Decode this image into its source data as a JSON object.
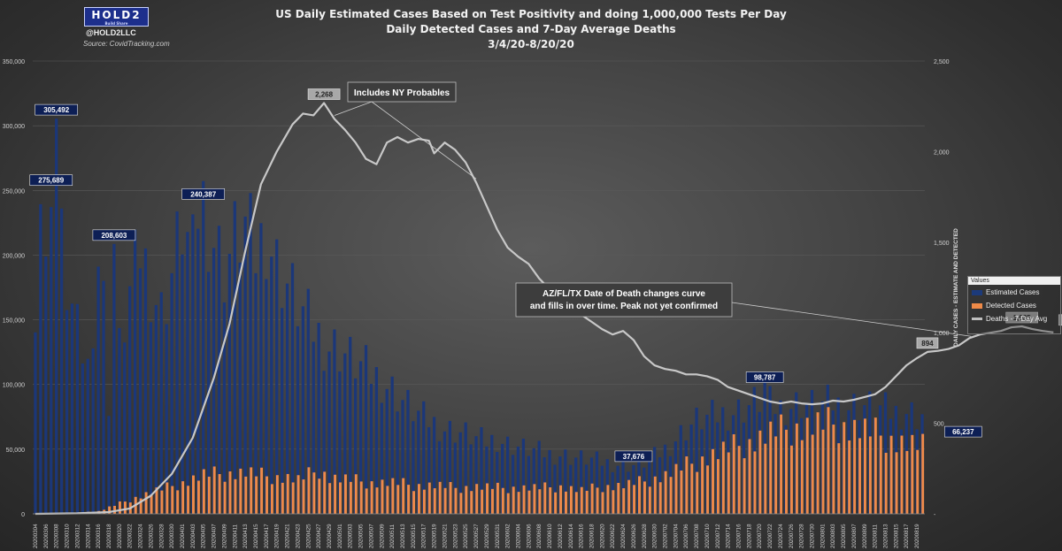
{
  "header": {
    "logo_text": "HOLD2",
    "logo_sub": "Build Share",
    "handle": "@HOLD2LLC",
    "source": "Source: CovidTracking.com"
  },
  "titles": [
    "US Daily Estimated Cases Based on Test Positivity and doing 1,000,000 Tests Per Day",
    "Daily Detected Cases and 7-Day Average Deaths",
    "3/4/20-8/20/20"
  ],
  "legend": {
    "heading": "Values",
    "items": [
      {
        "label": "Estimated Cases",
        "color": "#1c3a7a"
      },
      {
        "label": "Detected Cases",
        "color": "#ef8a48"
      },
      {
        "label": "Deaths - 7-Day Avg",
        "color": "#bfbfbf"
      }
    ]
  },
  "chart_data": {
    "type": "bar",
    "start_date": "2020-03-04",
    "end_date": "2020-08-20",
    "left_axis": {
      "ylim": [
        0,
        350000
      ],
      "ticks": [
        "0",
        "50,000",
        "100,000",
        "150,000",
        "200,000",
        "250,000",
        "300,000",
        "350,000"
      ]
    },
    "right_axis": {
      "ylim": [
        0,
        2500
      ],
      "ticks": [
        "-",
        "500",
        "1,000",
        "1,500",
        "2,000",
        "2,500"
      ],
      "label": "DAILY CASES - ESTIMATE AND DETECTED"
    },
    "x_tick_labels": [
      "20200304",
      "20200306",
      "20200308",
      "20200310",
      "20200312",
      "20200314",
      "20200316",
      "20200318",
      "20200320",
      "20200322",
      "20200324",
      "20200326",
      "20200328",
      "20200330",
      "20200401",
      "20200403",
      "20200405",
      "20200407",
      "20200409",
      "20200411",
      "20200413",
      "20200415",
      "20200417",
      "20200419",
      "20200421",
      "20200423",
      "20200425",
      "20200427",
      "20200429",
      "20200501",
      "20200503",
      "20200505",
      "20200507",
      "20200509",
      "20200511",
      "20200513",
      "20200515",
      "20200517",
      "20200519",
      "20200521",
      "20200523",
      "20200525",
      "20200527",
      "20200529",
      "20200531",
      "20200602",
      "20200604",
      "20200606",
      "20200608",
      "20200610",
      "20200612",
      "20200614",
      "20200616",
      "20200618",
      "20200620",
      "20200622",
      "20200624",
      "20200626",
      "20200628",
      "20200630",
      "20200702",
      "20200704",
      "20200706",
      "20200708",
      "20200710",
      "20200712",
      "20200714",
      "20200716",
      "20200718",
      "20200720",
      "20200722",
      "20200724",
      "20200726",
      "20200728",
      "20200730",
      "20200801",
      "20200803",
      "20200805",
      "20200807",
      "20200809",
      "20200811",
      "20200813",
      "20200815",
      "20200817",
      "20200819"
    ],
    "series": [
      {
        "name": "Estimated Cases",
        "key_points": [
          [
            0,
            170000
          ],
          [
            1,
            248000
          ],
          [
            2,
            180000
          ],
          [
            3,
            275689
          ],
          [
            4,
            305492
          ],
          [
            5,
            207000
          ],
          [
            6,
            176000
          ],
          [
            8,
            138000
          ],
          [
            10,
            112000
          ],
          [
            12,
            198000
          ],
          [
            13,
            163000
          ],
          [
            14,
            88000
          ],
          [
            15,
            208603
          ],
          [
            16,
            126000
          ],
          [
            18,
            170000
          ],
          [
            20,
            204000
          ],
          [
            24,
            155000
          ],
          [
            26,
            186000
          ],
          [
            28,
            224000
          ],
          [
            30,
            197000
          ],
          [
            31,
            237000
          ],
          [
            32,
            240387
          ],
          [
            34,
            213000
          ],
          [
            36,
            190000
          ],
          [
            38,
            212000
          ],
          [
            40,
            222000
          ],
          [
            42,
            200000
          ],
          [
            44,
            220000
          ],
          [
            46,
            192000
          ],
          [
            48,
            178000
          ],
          [
            50,
            162000
          ],
          [
            52,
            148000
          ],
          [
            54,
            138000
          ],
          [
            56,
            130000
          ],
          [
            58,
            128000
          ],
          [
            60,
            120000
          ],
          [
            62,
            114000
          ],
          [
            64,
            108000
          ],
          [
            66,
            104000
          ],
          [
            68,
            96000
          ],
          [
            70,
            88000
          ],
          [
            72,
            80000
          ],
          [
            74,
            74000
          ],
          [
            76,
            70000
          ],
          [
            78,
            66000
          ],
          [
            80,
            64000
          ],
          [
            82,
            62000
          ],
          [
            84,
            58000
          ],
          [
            86,
            56000
          ],
          [
            88,
            58000
          ],
          [
            90,
            54000
          ],
          [
            92,
            52000
          ],
          [
            94,
            50000
          ],
          [
            96,
            48000
          ],
          [
            98,
            46000
          ],
          [
            100,
            46000
          ],
          [
            102,
            44000
          ],
          [
            104,
            43000
          ],
          [
            106,
            42000
          ],
          [
            108,
            40000
          ],
          [
            110,
            39000
          ],
          [
            112,
            38000
          ],
          [
            114,
            37676
          ],
          [
            116,
            40000
          ],
          [
            118,
            44000
          ],
          [
            120,
            50000
          ],
          [
            122,
            58000
          ],
          [
            124,
            66000
          ],
          [
            126,
            72000
          ],
          [
            128,
            74000
          ],
          [
            130,
            76000
          ],
          [
            132,
            78000
          ],
          [
            134,
            80000
          ],
          [
            136,
            84000
          ],
          [
            138,
            88000
          ],
          [
            139,
            98787
          ],
          [
            140,
            84000
          ],
          [
            142,
            82000
          ],
          [
            144,
            84000
          ],
          [
            146,
            86000
          ],
          [
            148,
            84000
          ],
          [
            150,
            84000
          ],
          [
            152,
            86000
          ],
          [
            154,
            82000
          ],
          [
            156,
            84000
          ],
          [
            158,
            84000
          ],
          [
            160,
            82000
          ],
          [
            162,
            80000
          ],
          [
            164,
            78000
          ],
          [
            166,
            80000
          ],
          [
            168,
            76000
          ],
          [
            170,
            78000
          ],
          [
            172,
            74000
          ],
          [
            173,
            117000
          ],
          [
            174,
            56000
          ],
          [
            176,
            72000
          ],
          [
            178,
            70000
          ],
          [
            179,
            66237
          ]
        ]
      },
      {
        "name": "Detected Cases",
        "key_points": [
          [
            0,
            200
          ],
          [
            6,
            500
          ],
          [
            12,
            2000
          ],
          [
            16,
            8000
          ],
          [
            20,
            14000
          ],
          [
            24,
            19000
          ],
          [
            28,
            24000
          ],
          [
            32,
            30000
          ],
          [
            36,
            31000
          ],
          [
            40,
            32000
          ],
          [
            44,
            29000
          ],
          [
            48,
            28000
          ],
          [
            50,
            26000
          ],
          [
            54,
            34000
          ],
          [
            56,
            28000
          ],
          [
            60,
            26000
          ],
          [
            64,
            24000
          ],
          [
            68,
            24000
          ],
          [
            72,
            22000
          ],
          [
            76,
            22000
          ],
          [
            80,
            20000
          ],
          [
            84,
            21000
          ],
          [
            88,
            20000
          ],
          [
            92,
            20000
          ],
          [
            96,
            20000
          ],
          [
            100,
            21000
          ],
          [
            104,
            18000
          ],
          [
            108,
            21000
          ],
          [
            112,
            22000
          ],
          [
            116,
            25000
          ],
          [
            120,
            30000
          ],
          [
            124,
            37000
          ],
          [
            128,
            44000
          ],
          [
            132,
            50000
          ],
          [
            136,
            55000
          ],
          [
            140,
            62000
          ],
          [
            144,
            66000
          ],
          [
            148,
            68000
          ],
          [
            152,
            69000
          ],
          [
            156,
            66000
          ],
          [
            160,
            62000
          ],
          [
            164,
            56000
          ],
          [
            168,
            52000
          ],
          [
            172,
            50000
          ],
          [
            176,
            46000
          ],
          [
            179,
            44000
          ]
        ]
      },
      {
        "name": "Deaths - 7-Day Avg",
        "key_points": [
          [
            0,
            0
          ],
          [
            8,
            3
          ],
          [
            14,
            10
          ],
          [
            18,
            30
          ],
          [
            22,
            100
          ],
          [
            26,
            220
          ],
          [
            30,
            420
          ],
          [
            34,
            750
          ],
          [
            37,
            1050
          ],
          [
            40,
            1450
          ],
          [
            43,
            1820
          ],
          [
            46,
            2000
          ],
          [
            49,
            2150
          ],
          [
            51,
            2210
          ],
          [
            53,
            2200
          ],
          [
            55,
            2268
          ],
          [
            57,
            2180
          ],
          [
            59,
            2120
          ],
          [
            61,
            2050
          ],
          [
            63,
            1960
          ],
          [
            65,
            1930
          ],
          [
            67,
            2050
          ],
          [
            69,
            2080
          ],
          [
            71,
            2050
          ],
          [
            73,
            2070
          ],
          [
            75,
            2060
          ],
          [
            76,
            1990
          ],
          [
            78,
            2050
          ],
          [
            80,
            2010
          ],
          [
            82,
            1940
          ],
          [
            84,
            1830
          ],
          [
            86,
            1700
          ],
          [
            88,
            1570
          ],
          [
            90,
            1470
          ],
          [
            92,
            1420
          ],
          [
            94,
            1380
          ],
          [
            96,
            1300
          ],
          [
            98,
            1240
          ],
          [
            100,
            1250
          ],
          [
            102,
            1190
          ],
          [
            104,
            1100
          ],
          [
            106,
            1060
          ],
          [
            108,
            1020
          ],
          [
            110,
            990
          ],
          [
            112,
            1010
          ],
          [
            114,
            960
          ],
          [
            116,
            870
          ],
          [
            118,
            820
          ],
          [
            120,
            800
          ],
          [
            122,
            790
          ],
          [
            124,
            770
          ],
          [
            126,
            770
          ],
          [
            128,
            760
          ],
          [
            130,
            740
          ],
          [
            132,
            700
          ],
          [
            134,
            680
          ],
          [
            136,
            660
          ],
          [
            138,
            640
          ],
          [
            140,
            620
          ],
          [
            142,
            610
          ],
          [
            144,
            620
          ],
          [
            146,
            610
          ],
          [
            148,
            605
          ],
          [
            150,
            610
          ],
          [
            152,
            625
          ],
          [
            154,
            620
          ],
          [
            156,
            630
          ],
          [
            158,
            645
          ],
          [
            160,
            660
          ],
          [
            162,
            700
          ],
          [
            164,
            760
          ],
          [
            166,
            820
          ],
          [
            168,
            860
          ],
          [
            170,
            894
          ],
          [
            172,
            900
          ],
          [
            174,
            910
          ],
          [
            176,
            930
          ],
          [
            178,
            970
          ],
          [
            180,
            990
          ],
          [
            182,
            1000
          ],
          [
            184,
            1010
          ],
          [
            186,
            1030
          ],
          [
            188,
            1035
          ],
          [
            190,
            1020
          ],
          [
            192,
            1010
          ],
          [
            194,
            1002
          ]
        ]
      }
    ],
    "data_labels": [
      {
        "day": 4,
        "value": 305492,
        "text": "305,492",
        "style": "dark"
      },
      {
        "day": 3,
        "value": 275689,
        "text": "275,689",
        "style": "dark"
      },
      {
        "day": 15,
        "value": 208603,
        "text": "208,603",
        "style": "dark"
      },
      {
        "day": 32,
        "value": 240387,
        "text": "240,387",
        "style": "dark"
      },
      {
        "day": 114,
        "value": 37676,
        "text": "37,676",
        "style": "dark"
      },
      {
        "day": 139,
        "value": 98787,
        "text": "98,787",
        "style": "dark"
      },
      {
        "day": 179,
        "value": 66237,
        "text": "66,237",
        "style": "dark"
      },
      {
        "day": 55,
        "deaths": 2268,
        "text": "2,268",
        "style": "light"
      },
      {
        "day": 170,
        "deaths": 894,
        "text": "894",
        "style": "light"
      },
      {
        "day": 188,
        "deaths": 1035,
        "text": "1,035",
        "style": "light"
      },
      {
        "day": 194,
        "deaths": 1002,
        "text": "1,002",
        "style": "light"
      }
    ],
    "annotations": [
      {
        "text": [
          "Includes NY Probables"
        ],
        "target_days": [
          57,
          84
        ],
        "target_deaths": [
          2180,
          1830
        ]
      },
      {
        "text": [
          "AZ/FL/TX Date of Death changes curve",
          "and fills in over time. Peak not yet confirmed"
        ],
        "target_days": [
          180
        ],
        "target_deaths": [
          990
        ]
      }
    ]
  }
}
